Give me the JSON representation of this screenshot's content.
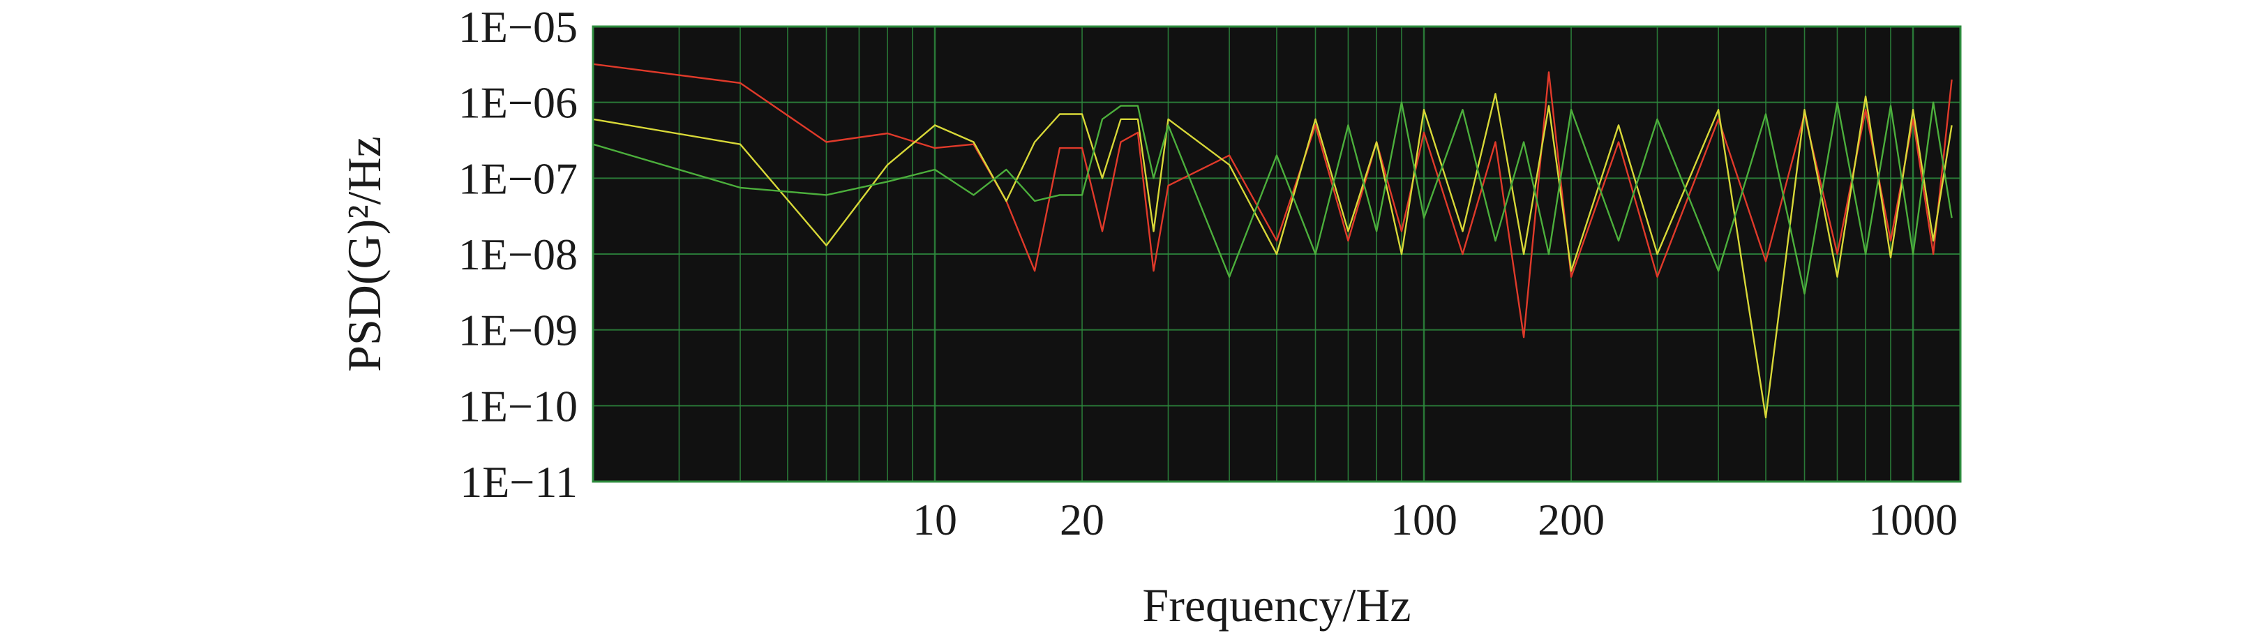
{
  "chart_data": {
    "type": "line",
    "title": "",
    "xlabel": "Frequency/Hz",
    "ylabel": "PSD(G)²/Hz",
    "x_scale": "log",
    "y_scale": "log",
    "xlim": [
      2,
      1250
    ],
    "ylim": [
      1e-11,
      1e-05
    ],
    "x_ticks": [
      {
        "value": 10,
        "label": "10"
      },
      {
        "value": 20,
        "label": "20"
      },
      {
        "value": 100,
        "label": "100"
      },
      {
        "value": 200,
        "label": "200"
      },
      {
        "value": 1000,
        "label": "1000"
      }
    ],
    "y_ticks": [
      {
        "value": 1e-05,
        "label": "1E−05"
      },
      {
        "value": 1e-06,
        "label": "1E−06"
      },
      {
        "value": 1e-07,
        "label": "1E−07"
      },
      {
        "value": 1e-08,
        "label": "1E−08"
      },
      {
        "value": 1e-09,
        "label": "1E−09"
      },
      {
        "value": 1e-10,
        "label": "1E−10"
      },
      {
        "value": 1e-11,
        "label": "1E−11"
      }
    ],
    "grid": true,
    "plot_background": "#111111",
    "grid_color": "#2e8b3e",
    "series": [
      {
        "color": "#e03a2a",
        "points": [
          [
            2,
            3.2e-06
          ],
          [
            4,
            1.8e-06
          ],
          [
            6,
            3e-07
          ],
          [
            8,
            3.9e-07
          ],
          [
            10,
            2.5e-07
          ],
          [
            12,
            2.8e-07
          ],
          [
            14,
            5e-08
          ],
          [
            16,
            6e-09
          ],
          [
            18,
            2.5e-07
          ],
          [
            20,
            2.5e-07
          ],
          [
            22,
            2e-08
          ],
          [
            24,
            3e-07
          ],
          [
            26,
            4e-07
          ],
          [
            28,
            6e-09
          ],
          [
            30,
            8e-08
          ],
          [
            40,
            2e-07
          ],
          [
            50,
            1.5e-08
          ],
          [
            60,
            5e-07
          ],
          [
            70,
            1.5e-08
          ],
          [
            80,
            3e-07
          ],
          [
            90,
            2e-08
          ],
          [
            100,
            4e-07
          ],
          [
            120,
            1e-08
          ],
          [
            140,
            3e-07
          ],
          [
            160,
            8e-10
          ],
          [
            180,
            2.5e-06
          ],
          [
            200,
            5e-09
          ],
          [
            250,
            3e-07
          ],
          [
            300,
            5e-09
          ],
          [
            400,
            6e-07
          ],
          [
            500,
            8e-09
          ],
          [
            600,
            7e-07
          ],
          [
            700,
            1e-08
          ],
          [
            800,
            8e-07
          ],
          [
            900,
            1.5e-08
          ],
          [
            1000,
            6e-07
          ],
          [
            1100,
            1e-08
          ],
          [
            1200,
            2e-06
          ]
        ]
      },
      {
        "color": "#d8d838",
        "points": [
          [
            2,
            6e-07
          ],
          [
            4,
            2.8e-07
          ],
          [
            6,
            1.3e-08
          ],
          [
            8,
            1.5e-07
          ],
          [
            10,
            5e-07
          ],
          [
            12,
            3e-07
          ],
          [
            14,
            5e-08
          ],
          [
            16,
            3e-07
          ],
          [
            18,
            7e-07
          ],
          [
            20,
            7e-07
          ],
          [
            22,
            1e-07
          ],
          [
            24,
            6e-07
          ],
          [
            26,
            6e-07
          ],
          [
            28,
            2e-08
          ],
          [
            30,
            6e-07
          ],
          [
            40,
            1.5e-07
          ],
          [
            50,
            1e-08
          ],
          [
            60,
            6e-07
          ],
          [
            70,
            2e-08
          ],
          [
            80,
            3e-07
          ],
          [
            90,
            1e-08
          ],
          [
            100,
            8e-07
          ],
          [
            120,
            2e-08
          ],
          [
            140,
            1.3e-06
          ],
          [
            160,
            1e-08
          ],
          [
            180,
            9e-07
          ],
          [
            200,
            6e-09
          ],
          [
            250,
            5e-07
          ],
          [
            300,
            1e-08
          ],
          [
            400,
            8e-07
          ],
          [
            500,
            7e-11
          ],
          [
            600,
            8e-07
          ],
          [
            700,
            5e-09
          ],
          [
            800,
            1.2e-06
          ],
          [
            900,
            9e-09
          ],
          [
            1000,
            8e-07
          ],
          [
            1100,
            1.5e-08
          ],
          [
            1200,
            5e-07
          ]
        ]
      },
      {
        "color": "#4caf3c",
        "points": [
          [
            2,
            2.8e-07
          ],
          [
            4,
            7.5e-08
          ],
          [
            6,
            6e-08
          ],
          [
            8,
            9e-08
          ],
          [
            10,
            1.3e-07
          ],
          [
            12,
            6e-08
          ],
          [
            14,
            1.3e-07
          ],
          [
            16,
            5e-08
          ],
          [
            18,
            6e-08
          ],
          [
            20,
            6e-08
          ],
          [
            22,
            6e-07
          ],
          [
            24,
            9e-07
          ],
          [
            26,
            9e-07
          ],
          [
            28,
            1e-07
          ],
          [
            30,
            5e-07
          ],
          [
            40,
            5e-09
          ],
          [
            50,
            2e-07
          ],
          [
            60,
            1e-08
          ],
          [
            70,
            5e-07
          ],
          [
            80,
            2e-08
          ],
          [
            90,
            1e-06
          ],
          [
            100,
            3e-08
          ],
          [
            120,
            8e-07
          ],
          [
            140,
            1.5e-08
          ],
          [
            160,
            3e-07
          ],
          [
            180,
            1e-08
          ],
          [
            200,
            8e-07
          ],
          [
            250,
            1.5e-08
          ],
          [
            300,
            6e-07
          ],
          [
            400,
            6e-09
          ],
          [
            500,
            7e-07
          ],
          [
            600,
            3e-09
          ],
          [
            700,
            1e-06
          ],
          [
            800,
            1e-08
          ],
          [
            900,
            9e-07
          ],
          [
            1000,
            1e-08
          ],
          [
            1100,
            1e-06
          ],
          [
            1200,
            3e-08
          ]
        ]
      }
    ]
  }
}
